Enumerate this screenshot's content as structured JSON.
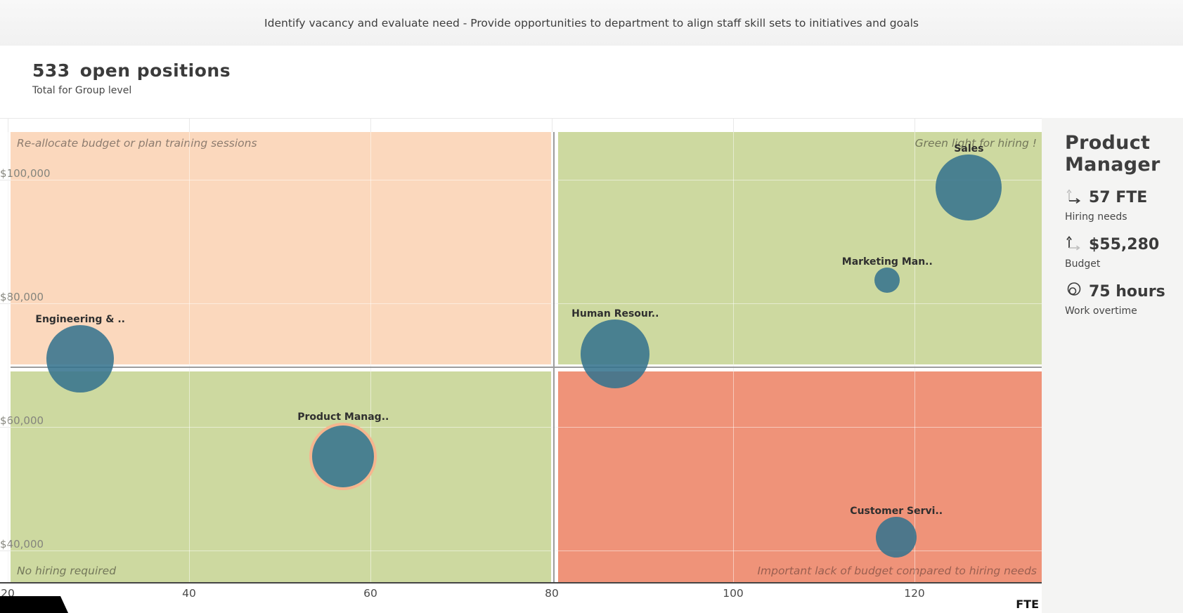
{
  "header": {
    "description": "Identify vacancy and evaluate need - Provide opportunities to department to align staff skill sets to initiatives and goals"
  },
  "title": {
    "value": "533",
    "label": "open positions",
    "subtitle": "Total for Group level"
  },
  "chart_data": {
    "type": "scatter",
    "subtype": "quadrant-bubble",
    "x_axis": {
      "label": "FTE",
      "ticks": [
        20,
        40,
        60,
        80,
        100,
        120
      ]
    },
    "y_axis": {
      "ticks": [
        {
          "label": "$100,000",
          "value": 100000
        },
        {
          "label": "$80,000",
          "value": 80000
        },
        {
          "label": "$60,000",
          "value": 60000
        },
        {
          "label": "$40,000",
          "value": 40000
        }
      ]
    },
    "quadrants": {
      "top_left": {
        "caption": "Re-allocate budget or plan training sessions",
        "color": "#fbd8bd"
      },
      "top_right": {
        "caption": "Green light for hiring !",
        "color": "#cdd9a0"
      },
      "bottom_left": {
        "caption": "No hiring required",
        "color": "#cdd9a0"
      },
      "bottom_right": {
        "caption": "Important lack of budget compared to hiring needs",
        "color": "#ef9379"
      }
    },
    "bubbles": [
      {
        "label": "Engineering & ..",
        "fte": 28,
        "budget": 71000,
        "radius_px": 48,
        "selected": false
      },
      {
        "label": "Product Manag..",
        "fte": 57,
        "budget": 55280,
        "radius_px": 44,
        "selected": true
      },
      {
        "label": "Human Resour..",
        "fte": 87,
        "budget": 71800,
        "radius_px": 49,
        "selected": false
      },
      {
        "label": "Sales",
        "fte": 126,
        "budget": 98700,
        "radius_px": 47,
        "selected": false
      },
      {
        "label": "Marketing Man..",
        "fte": 117,
        "budget": 83700,
        "radius_px": 18,
        "selected": false
      },
      {
        "label": "Customer Servi..",
        "fte": 118,
        "budget": 42200,
        "radius_px": 29,
        "selected": false
      }
    ],
    "bubble_color": "rgba(53,115,141,0.87)",
    "selected_ring_color": "#f6b58e"
  },
  "panel": {
    "title": "Product Manager",
    "metrics": [
      {
        "value": "57 FTE",
        "label": "Hiring needs",
        "icon": "x-axis-arrow-icon"
      },
      {
        "value": "$55,280",
        "label": "Budget",
        "icon": "y-axis-arrow-icon"
      },
      {
        "value": "75 hours",
        "label": "Work overtime",
        "icon": "bubble-size-icon"
      }
    ]
  }
}
